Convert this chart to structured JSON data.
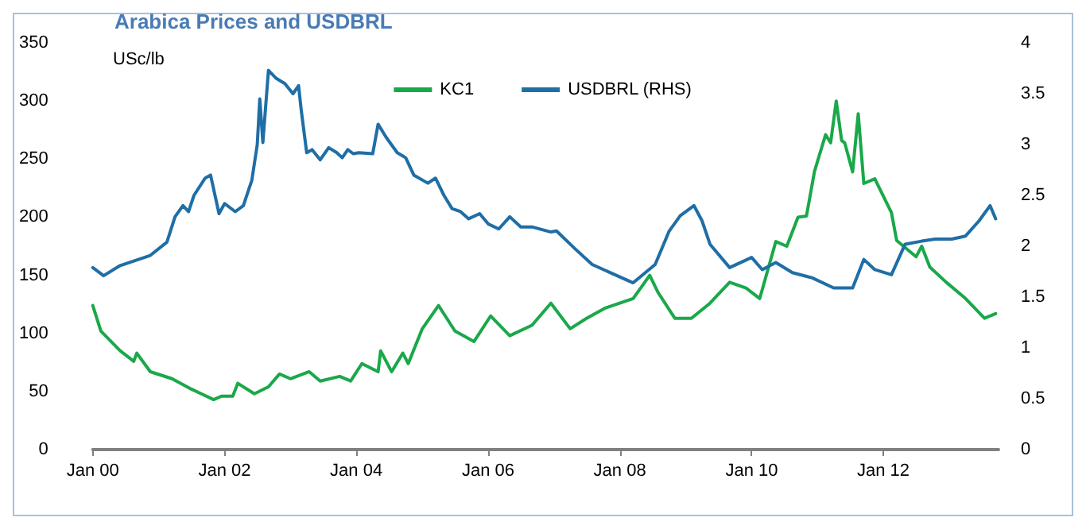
{
  "chart_data": {
    "type": "line",
    "title": "Arabica Prices and USDBRL",
    "ylabel": "USc/lb",
    "xlim": [
      "2000-01-01",
      "2013-10-01"
    ],
    "xticks": [
      {
        "value": "2000-01-01",
        "label": "Jan 00"
      },
      {
        "value": "2002-01-01",
        "label": "Jan 02"
      },
      {
        "value": "2004-01-01",
        "label": "Jan 04"
      },
      {
        "value": "2006-01-01",
        "label": "Jan 06"
      },
      {
        "value": "2008-01-01",
        "label": "Jan 08"
      },
      {
        "value": "2010-01-01",
        "label": "Jan 10"
      },
      {
        "value": "2012-01-01",
        "label": "Jan 12"
      }
    ],
    "ylim": [
      0,
      350
    ],
    "yticks": [
      0,
      50,
      100,
      150,
      200,
      250,
      300,
      350
    ],
    "y2lim": [
      0,
      4
    ],
    "y2ticks": [
      0,
      0.5,
      1,
      1.5,
      2,
      2.5,
      3,
      3.5,
      4
    ],
    "grid": false,
    "legend": "top",
    "marker": "none",
    "line_style": "solid",
    "series": [
      {
        "name": "KC1",
        "color": "#1aa84a",
        "x": [
          "2000-01-01",
          "2000-02-15",
          "2000-06-01",
          "2000-08-15",
          "2000-09-01",
          "2000-11-15",
          "2001-03-15",
          "2001-07-01",
          "2001-11-01",
          "2001-12-15",
          "2002-02-15",
          "2002-03-15",
          "2002-06-15",
          "2002-09-01",
          "2002-11-01",
          "2003-01-01",
          "2003-04-15",
          "2003-06-15",
          "2003-10-01",
          "2003-12-01",
          "2004-02-01",
          "2004-05-01",
          "2004-05-15",
          "2004-07-15",
          "2004-09-15",
          "2004-10-15",
          "2005-01-01",
          "2005-04-01",
          "2005-07-01",
          "2005-10-15",
          "2006-01-15",
          "2006-05-01",
          "2006-09-01",
          "2006-12-15",
          "2007-04-01",
          "2007-07-01",
          "2007-10-15",
          "2008-03-15",
          "2008-06-15",
          "2008-08-01",
          "2008-11-01",
          "2009-02-01",
          "2009-05-15",
          "2009-09-01",
          "2009-12-01",
          "2010-02-15",
          "2010-05-15",
          "2010-07-15",
          "2010-09-15",
          "2010-11-01",
          "2010-12-15",
          "2011-01-01",
          "2011-02-15",
          "2011-03-15",
          "2011-04-15",
          "2011-05-15",
          "2011-06-01",
          "2011-07-15",
          "2011-08-15",
          "2011-09-15",
          "2011-11-15",
          "2012-02-15",
          "2012-03-15",
          "2012-07-01",
          "2012-08-01",
          "2012-09-15",
          "2012-12-15",
          "2013-04-01",
          "2013-07-15",
          "2013-09-15"
        ],
        "values": [
          124,
          102,
          85,
          76,
          83,
          67,
          61,
          52,
          43,
          46,
          46,
          57,
          48,
          54,
          65,
          61,
          67,
          59,
          63,
          59,
          74,
          67,
          85,
          67,
          83,
          74,
          104,
          124,
          102,
          93,
          115,
          98,
          107,
          126,
          104,
          113,
          122,
          130,
          150,
          135,
          113,
          113,
          126,
          144,
          139,
          130,
          179,
          175,
          200,
          201,
          239,
          248,
          271,
          264,
          300,
          266,
          264,
          239,
          289,
          229,
          233,
          204,
          180,
          166,
          175,
          157,
          144,
          130,
          113,
          117
        ]
      },
      {
        "name": "USDBRL (RHS)",
        "color": "#1f6ea6",
        "axis": "y2",
        "x": [
          "2000-01-01",
          "2000-03-01",
          "2000-06-01",
          "2000-11-15",
          "2001-02-15",
          "2001-04-01",
          "2001-05-15",
          "2001-06-15",
          "2001-07-15",
          "2001-09-15",
          "2001-10-15",
          "2001-12-01",
          "2002-01-01",
          "2002-03-01",
          "2002-04-15",
          "2002-06-01",
          "2002-07-01",
          "2002-07-15",
          "2002-08-01",
          "2002-09-01",
          "2002-10-15",
          "2002-12-01",
          "2003-01-15",
          "2003-02-15",
          "2003-03-01",
          "2003-04-01",
          "2003-05-01",
          "2003-06-15",
          "2003-08-01",
          "2003-09-15",
          "2003-10-15",
          "2003-11-15",
          "2003-12-15",
          "2004-01-15",
          "2004-04-01",
          "2004-05-01",
          "2004-06-15",
          "2004-08-15",
          "2004-10-01",
          "2004-11-15",
          "2005-02-01",
          "2005-03-15",
          "2005-05-01",
          "2005-06-15",
          "2005-08-01",
          "2005-09-15",
          "2005-11-15",
          "2006-01-01",
          "2006-03-01",
          "2006-05-01",
          "2006-07-01",
          "2006-09-01",
          "2006-12-15",
          "2007-01-15",
          "2007-05-01",
          "2007-08-01",
          "2008-03-15",
          "2008-07-15",
          "2008-10-01",
          "2008-12-01",
          "2009-02-15",
          "2009-04-01",
          "2009-05-15",
          "2009-09-01",
          "2010-01-01",
          "2010-03-01",
          "2010-05-15",
          "2010-08-15",
          "2010-12-01",
          "2011-04-01",
          "2011-07-15",
          "2011-09-15",
          "2011-11-15",
          "2012-02-15",
          "2012-05-01",
          "2012-08-01",
          "2012-10-15",
          "2013-01-15",
          "2013-04-01",
          "2013-06-15",
          "2013-08-15",
          "2013-09-15"
        ],
        "values": [
          1.79,
          1.71,
          1.81,
          1.91,
          2.04,
          2.29,
          2.4,
          2.34,
          2.5,
          2.67,
          2.7,
          2.32,
          2.42,
          2.34,
          2.4,
          2.65,
          3.0,
          3.45,
          3.02,
          3.73,
          3.65,
          3.6,
          3.5,
          3.58,
          3.35,
          2.92,
          2.95,
          2.85,
          2.97,
          2.92,
          2.87,
          2.95,
          2.91,
          2.92,
          2.91,
          3.2,
          3.07,
          2.92,
          2.87,
          2.7,
          2.62,
          2.67,
          2.5,
          2.37,
          2.34,
          2.27,
          2.32,
          2.22,
          2.17,
          2.29,
          2.19,
          2.19,
          2.14,
          2.15,
          1.97,
          1.82,
          1.64,
          1.82,
          2.15,
          2.3,
          2.4,
          2.25,
          2.02,
          1.79,
          1.89,
          1.77,
          1.84,
          1.74,
          1.69,
          1.59,
          1.59,
          1.87,
          1.77,
          1.72,
          2.02,
          2.05,
          2.07,
          2.07,
          2.1,
          2.25,
          2.4,
          2.27
        ]
      }
    ]
  }
}
